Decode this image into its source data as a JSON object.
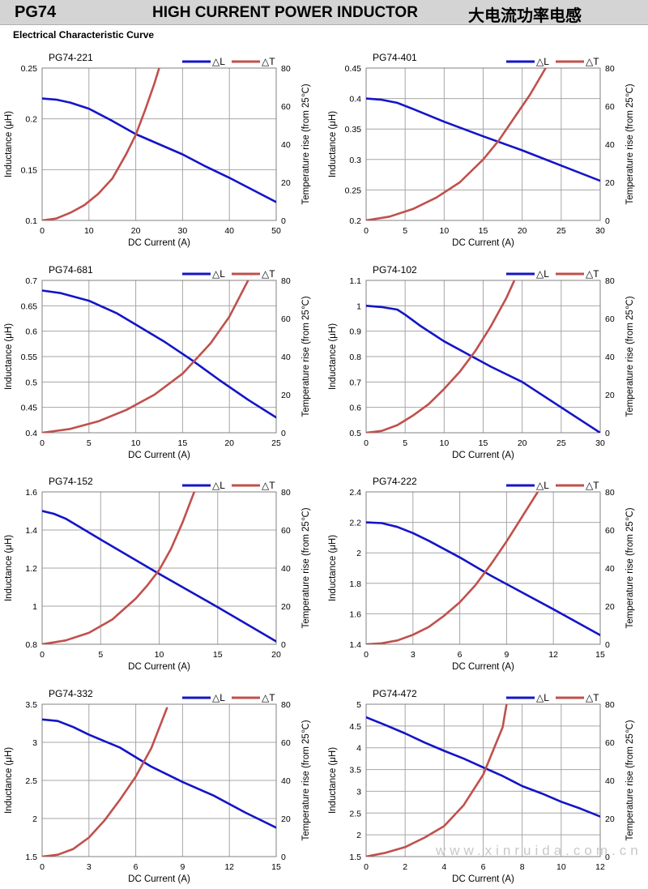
{
  "header": {
    "model": "PG74",
    "title": "HIGH CURRENT POWER INDUCTOR",
    "title_cn": "大电流功率电感"
  },
  "section_title": "Electrical Characteristic Curve",
  "watermark": "www.xinruida.com.cn",
  "colors": {
    "inductance": "#1414c8",
    "temperature": "#c0504d",
    "grid": "#a6a6a6"
  },
  "chart_data": [
    {
      "type": "line",
      "title": "PG74-221",
      "xlabel": "DC Current (A)",
      "ylabel": "Inductance (μH)",
      "y2label": "Temperature rise (from 25℃)",
      "xlim": [
        0,
        50
      ],
      "xticks": [
        0,
        10,
        20,
        30,
        40,
        50
      ],
      "ylim": [
        0.1,
        0.25
      ],
      "yticks": [
        "0.1",
        "0.15",
        "0.2",
        "0.25"
      ],
      "y2lim": [
        0,
        80
      ],
      "y2ticks": [
        0,
        20,
        40,
        60,
        80
      ],
      "legend": [
        "△L",
        "△T"
      ],
      "legend_position": "top-right",
      "grid": true,
      "series": [
        {
          "name": "△L",
          "axis": "left",
          "x": [
            0,
            3,
            6,
            10,
            15,
            20,
            25,
            30,
            35,
            40,
            45,
            50
          ],
          "y": [
            0.22,
            0.219,
            0.216,
            0.21,
            0.198,
            0.185,
            0.175,
            0.165,
            0.153,
            0.142,
            0.13,
            0.118
          ]
        },
        {
          "name": "△T",
          "axis": "right",
          "x": [
            0,
            3,
            6,
            9,
            12,
            15,
            18,
            20,
            22,
            24,
            25
          ],
          "y": [
            0,
            1,
            4,
            8,
            14,
            22,
            35,
            45,
            58,
            72,
            80
          ]
        }
      ]
    },
    {
      "type": "line",
      "title": "PG74-401",
      "xlabel": "DC Current (A)",
      "ylabel": "Inductance (μH)",
      "y2label": "Temperature rise (from 25℃)",
      "xlim": [
        0,
        30
      ],
      "xticks": [
        0,
        5,
        10,
        15,
        20,
        25,
        30
      ],
      "ylim": [
        0.2,
        0.45
      ],
      "yticks": [
        "0.2",
        "0.25",
        "0.3",
        "0.35",
        "0.4",
        "0.45"
      ],
      "y2lim": [
        0,
        80
      ],
      "y2ticks": [
        0,
        20,
        40,
        60,
        80
      ],
      "legend": [
        "△L",
        "△T"
      ],
      "legend_position": "top-right",
      "grid": true,
      "series": [
        {
          "name": "△L",
          "axis": "left",
          "x": [
            0,
            2,
            4,
            6,
            10,
            15,
            20,
            25,
            30
          ],
          "y": [
            0.4,
            0.398,
            0.393,
            0.383,
            0.362,
            0.338,
            0.315,
            0.29,
            0.265
          ]
        },
        {
          "name": "△T",
          "axis": "right",
          "x": [
            0,
            3,
            6,
            9,
            12,
            15,
            17,
            19,
            21,
            23
          ],
          "y": [
            0,
            2,
            6,
            12,
            20,
            32,
            42,
            54,
            66,
            80
          ]
        }
      ]
    },
    {
      "type": "line",
      "title": "PG74-681",
      "xlabel": "DC Current (A)",
      "ylabel": "Inductance (μH)",
      "y2label": "Temperature rise (from 25℃)",
      "xlim": [
        0,
        25
      ],
      "xticks": [
        0,
        5,
        10,
        15,
        20,
        25
      ],
      "ylim": [
        0.4,
        0.7
      ],
      "yticks": [
        "0.4",
        "0.45",
        "0.5",
        "0.55",
        "0.6",
        "0.65",
        "0.7"
      ],
      "y2lim": [
        0,
        80
      ],
      "y2ticks": [
        0,
        20,
        40,
        60,
        80
      ],
      "legend": [
        "△L",
        "△T"
      ],
      "legend_position": "top-right",
      "grid": true,
      "series": [
        {
          "name": "△L",
          "axis": "left",
          "x": [
            0,
            2,
            5,
            8,
            10,
            13,
            16,
            19,
            22,
            25
          ],
          "y": [
            0.68,
            0.675,
            0.66,
            0.635,
            0.613,
            0.58,
            0.543,
            0.503,
            0.465,
            0.43
          ]
        },
        {
          "name": "△T",
          "axis": "right",
          "x": [
            0,
            3,
            6,
            9,
            12,
            15,
            18,
            20,
            22
          ],
          "y": [
            0,
            2,
            6,
            12,
            20,
            31,
            47,
            61,
            80
          ]
        }
      ]
    },
    {
      "type": "line",
      "title": "PG74-102",
      "xlabel": "DC Current (A)",
      "ylabel": "Inductance (μH)",
      "y2label": "Temperature rise (from 25℃)",
      "xlim": [
        0,
        30
      ],
      "xticks": [
        0,
        5,
        10,
        15,
        20,
        25,
        30
      ],
      "ylim": [
        0.5,
        1.1
      ],
      "yticks": [
        "0.5",
        "0.6",
        "0.7",
        "0.8",
        "0.9",
        "1",
        "1.1"
      ],
      "y2lim": [
        0,
        80
      ],
      "y2ticks": [
        0,
        20,
        40,
        60,
        80
      ],
      "legend": [
        "△L",
        "△T"
      ],
      "legend_position": "top-right",
      "grid": true,
      "series": [
        {
          "name": "△L",
          "axis": "left",
          "x": [
            0,
            2,
            4,
            5,
            7,
            10,
            13,
            16,
            20,
            25,
            30
          ],
          "y": [
            1.0,
            0.995,
            0.985,
            0.965,
            0.92,
            0.86,
            0.81,
            0.76,
            0.7,
            0.6,
            0.5
          ]
        },
        {
          "name": "△T",
          "axis": "right",
          "x": [
            0,
            2,
            4,
            6,
            8,
            10,
            12,
            14,
            16,
            18,
            19
          ],
          "y": [
            0,
            1,
            4,
            9,
            15,
            23,
            32,
            43,
            56,
            71,
            80
          ]
        }
      ]
    },
    {
      "type": "line",
      "title": "PG74-152",
      "xlabel": "DC Current (A)",
      "ylabel": "Inductance (μH)",
      "y2label": "Temperature rise (from 25℃)",
      "xlim": [
        0,
        20
      ],
      "xticks": [
        0,
        5,
        10,
        15,
        20
      ],
      "ylim": [
        0.8,
        1.6
      ],
      "yticks": [
        "0.8",
        "1",
        "1.2",
        "1.4",
        "1.6"
      ],
      "y2lim": [
        0,
        80
      ],
      "y2ticks": [
        0,
        20,
        40,
        60,
        80
      ],
      "legend": [
        "△L",
        "△T"
      ],
      "legend_position": "top-right",
      "grid": true,
      "series": [
        {
          "name": "△L",
          "axis": "left",
          "x": [
            0,
            1,
            2,
            5,
            10,
            15,
            20
          ],
          "y": [
            1.5,
            1.485,
            1.46,
            1.35,
            1.17,
            0.995,
            0.815
          ]
        },
        {
          "name": "△T",
          "axis": "right",
          "x": [
            0,
            2,
            4,
            6,
            8,
            9,
            10,
            11,
            12,
            13
          ],
          "y": [
            0,
            2,
            6,
            13,
            24,
            31,
            39,
            50,
            64,
            80
          ]
        }
      ]
    },
    {
      "type": "line",
      "title": "PG74-222",
      "xlabel": "DC Current (A)",
      "ylabel": "Inductance (μH)",
      "y2label": "Temperature rise (from 25℃)",
      "xlim": [
        0,
        15
      ],
      "xticks": [
        0,
        3,
        6,
        9,
        12,
        15
      ],
      "ylim": [
        1.4,
        2.4
      ],
      "yticks": [
        "1.4",
        "1.6",
        "1.8",
        "2",
        "2.2",
        "2.4"
      ],
      "y2lim": [
        0,
        80
      ],
      "y2ticks": [
        0,
        20,
        40,
        60,
        80
      ],
      "legend": [
        "△L",
        "△T"
      ],
      "legend_position": "top-right",
      "grid": true,
      "series": [
        {
          "name": "△L",
          "axis": "left",
          "x": [
            0,
            1,
            2,
            3,
            4,
            6,
            8,
            10,
            12,
            15
          ],
          "y": [
            2.2,
            2.195,
            2.17,
            2.13,
            2.08,
            1.97,
            1.85,
            1.74,
            1.63,
            1.46
          ]
        },
        {
          "name": "△T",
          "axis": "right",
          "x": [
            0,
            1,
            2,
            3,
            4,
            5,
            6,
            7,
            8,
            9,
            10,
            11
          ],
          "y": [
            0,
            0.5,
            2,
            5,
            9,
            15,
            22,
            31,
            42,
            54,
            67,
            80
          ]
        }
      ]
    },
    {
      "type": "line",
      "title": "PG74-332",
      "xlabel": "DC Current (A)",
      "ylabel": "Inductance (μH)",
      "y2label": "Temperature rise (from 25℃)",
      "xlim": [
        0,
        15
      ],
      "xticks": [
        0,
        3,
        6,
        9,
        12,
        15
      ],
      "ylim": [
        1.5,
        3.5
      ],
      "yticks": [
        "1.5",
        "2",
        "2.5",
        "3",
        "3.5"
      ],
      "y2lim": [
        0,
        80
      ],
      "y2ticks": [
        0,
        20,
        40,
        60,
        80
      ],
      "legend": [
        "△L",
        "△T"
      ],
      "legend_position": "top-right",
      "grid": true,
      "series": [
        {
          "name": "△L",
          "axis": "left",
          "x": [
            0,
            1,
            2,
            3,
            5,
            7,
            9,
            11,
            13,
            15
          ],
          "y": [
            3.3,
            3.28,
            3.2,
            3.1,
            2.93,
            2.68,
            2.48,
            2.3,
            2.08,
            1.88
          ]
        },
        {
          "name": "△T",
          "axis": "right",
          "x": [
            0,
            1,
            2,
            3,
            4,
            5,
            6,
            7,
            8
          ],
          "y": [
            0,
            1,
            4,
            10,
            19,
            30,
            42,
            57,
            78
          ]
        }
      ]
    },
    {
      "type": "line",
      "title": "PG74-472",
      "xlabel": "DC Current (A)",
      "ylabel": "Inductance (μH)",
      "y2label": "Temperature rise (from 25℃)",
      "xlim": [
        0,
        12
      ],
      "xticks": [
        0,
        2,
        4,
        6,
        8,
        10,
        12
      ],
      "ylim": [
        1.5,
        5
      ],
      "yticks": [
        "1.5",
        "2",
        "2.5",
        "3",
        "3.5",
        "4",
        "4.5",
        "5"
      ],
      "y2lim": [
        0,
        80
      ],
      "y2ticks": [
        0,
        20,
        40,
        60,
        80
      ],
      "legend": [
        "△L",
        "△T"
      ],
      "legend_position": "top-right",
      "grid": true,
      "series": [
        {
          "name": "△L",
          "axis": "left",
          "x": [
            0,
            1,
            2,
            3,
            4,
            5,
            6,
            7,
            8,
            9,
            10,
            11,
            12
          ],
          "y": [
            4.7,
            4.52,
            4.33,
            4.12,
            3.93,
            3.75,
            3.55,
            3.35,
            3.12,
            2.95,
            2.76,
            2.6,
            2.42
          ]
        },
        {
          "name": "△T",
          "axis": "right",
          "x": [
            0,
            1,
            2,
            3,
            4,
            5,
            6,
            7,
            7.2
          ],
          "y": [
            0,
            2,
            5,
            10,
            16,
            27,
            43,
            68,
            80
          ]
        }
      ]
    }
  ]
}
